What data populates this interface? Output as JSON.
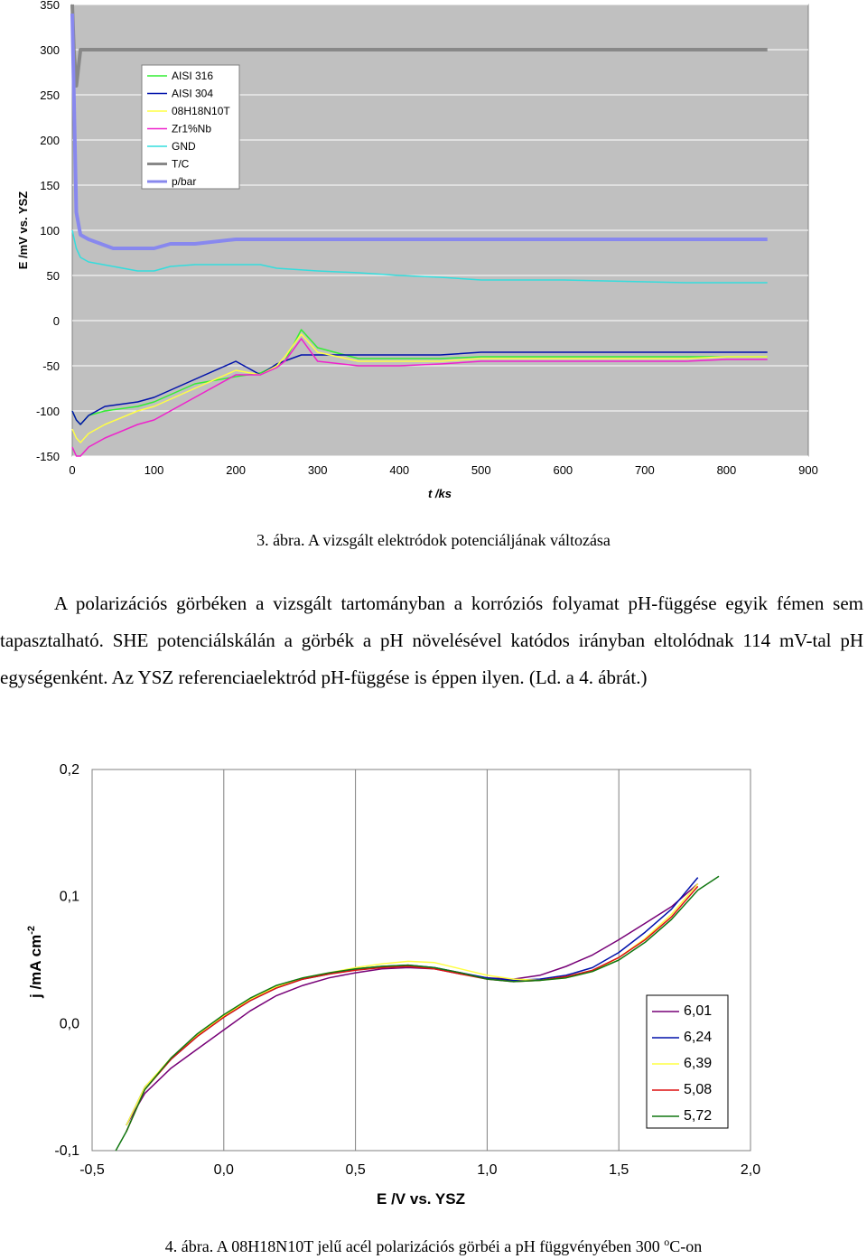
{
  "figure3": {
    "caption": "3. ábra. A vizsgált elektródok potenciáljának változása"
  },
  "paragraph": {
    "text": "A polarizációs görbéken a vizsgált tartományban a korróziós folyamat pH-függése egyik fémen sem tapasztalható. SHE potenciálskálán a görbék a pH növelésével katódos irányban eltolódnak 114 mV-tal pH egységenként. Az YSZ referenciaelektród pH-függése is éppen ilyen. (Ld. a 4. ábrát.)"
  },
  "figure4": {
    "caption_prefix": "4. ábra. A 08H18N10T jelű acél polarizációs görbéi a pH függvényében 300 ",
    "caption_sup": "o",
    "caption_suffix": "C-on"
  },
  "chart_data": [
    {
      "type": "line",
      "title": "",
      "xlabel": "t /ks",
      "ylabel": "E /mV vs. YSZ",
      "xlim": [
        0,
        900
      ],
      "ylim": [
        -150,
        350
      ],
      "xticks": [
        "0",
        "100",
        "200",
        "300",
        "400",
        "500",
        "600",
        "700",
        "800",
        "900"
      ],
      "yticks": [
        "-150",
        "-100",
        "-50",
        "0",
        "50",
        "100",
        "150",
        "200",
        "250",
        "300",
        "350"
      ],
      "grid": "horizontal",
      "plot_background": "#c0c0c0",
      "legend_position": "top-left",
      "series": [
        {
          "name": "AISI 316",
          "color": "#33ee33",
          "width": 1.5,
          "x": [
            0,
            5,
            10,
            20,
            40,
            80,
            100,
            150,
            200,
            230,
            260,
            280,
            300,
            350,
            400,
            450,
            500,
            520,
            540,
            560,
            600,
            620,
            650,
            700,
            750,
            800,
            850
          ],
          "y": [
            -100,
            -110,
            -115,
            -105,
            -100,
            -95,
            -90,
            -70,
            -62,
            -58,
            -45,
            -10,
            -30,
            -42,
            -42,
            -42,
            -40,
            -40,
            -40,
            -40,
            -40,
            -40,
            -40,
            -40,
            -40,
            -40,
            -40
          ]
        },
        {
          "name": "AISI 304",
          "color": "#0011aa",
          "width": 1.5,
          "x": [
            0,
            5,
            10,
            20,
            40,
            80,
            100,
            150,
            200,
            230,
            250,
            280,
            300,
            350,
            400,
            450,
            500,
            520,
            540,
            560,
            600,
            620,
            650,
            700,
            750,
            800,
            850
          ],
          "y": [
            -100,
            -110,
            -115,
            -105,
            -95,
            -90,
            -85,
            -65,
            -45,
            -60,
            -48,
            -38,
            -38,
            -38,
            -38,
            -38,
            -35,
            -35,
            -35,
            -35,
            -35,
            -35,
            -35,
            -35,
            -35,
            -35,
            -35
          ]
        },
        {
          "name": "08H18N10T",
          "color": "#ffff44",
          "width": 1.5,
          "x": [
            0,
            5,
            10,
            20,
            40,
            80,
            100,
            150,
            200,
            230,
            250,
            260,
            280,
            300,
            350,
            400,
            450,
            500,
            520,
            540,
            560,
            600,
            620,
            650,
            700,
            750,
            800,
            850
          ],
          "y": [
            -120,
            -130,
            -135,
            -125,
            -115,
            -100,
            -95,
            -75,
            -55,
            -60,
            -50,
            -40,
            -15,
            -35,
            -45,
            -45,
            -45,
            -42,
            -42,
            -42,
            -42,
            -42,
            -42,
            -42,
            -42,
            -42,
            -40,
            -40
          ]
        },
        {
          "name": "Zr1%Nb",
          "color": "#ee22cc",
          "width": 1.5,
          "x": [
            0,
            5,
            10,
            20,
            40,
            80,
            100,
            150,
            200,
            230,
            250,
            260,
            280,
            300,
            350,
            400,
            450,
            500,
            520,
            540,
            560,
            600,
            620,
            650,
            700,
            750,
            800,
            850
          ],
          "y": [
            -140,
            -150,
            -155,
            -140,
            -130,
            -115,
            -110,
            -85,
            -60,
            -60,
            -52,
            -45,
            -20,
            -45,
            -50,
            -50,
            -48,
            -45,
            -45,
            -45,
            -45,
            -45,
            -45,
            -45,
            -45,
            -45,
            -43,
            -43
          ]
        },
        {
          "name": "GND",
          "color": "#33dddd",
          "width": 1.5,
          "x": [
            0,
            5,
            10,
            20,
            50,
            80,
            100,
            120,
            150,
            200,
            230,
            250,
            300,
            350,
            400,
            450,
            500,
            550,
            600,
            650,
            700,
            750,
            800,
            850
          ],
          "y": [
            100,
            80,
            70,
            65,
            60,
            55,
            55,
            60,
            62,
            62,
            62,
            58,
            55,
            53,
            50,
            48,
            45,
            45,
            45,
            44,
            43,
            42,
            42,
            42
          ]
        },
        {
          "name": "T/C",
          "color": "#888888",
          "width": 4,
          "x": [
            0,
            2,
            5,
            10,
            20,
            50,
            100,
            200,
            300,
            400,
            500,
            600,
            700,
            800,
            850
          ],
          "y": [
            350,
            300,
            260,
            300,
            300,
            300,
            300,
            300,
            300,
            300,
            300,
            300,
            300,
            300,
            300
          ]
        },
        {
          "name": "p/bar",
          "color": "#8888ee",
          "width": 4,
          "x": [
            0,
            2,
            5,
            10,
            20,
            50,
            80,
            100,
            120,
            150,
            200,
            300,
            400,
            500,
            600,
            700,
            800,
            850
          ],
          "y": [
            340,
            250,
            120,
            95,
            90,
            80,
            80,
            80,
            85,
            85,
            90,
            90,
            90,
            90,
            90,
            90,
            90,
            90
          ]
        }
      ]
    },
    {
      "type": "line",
      "title": "",
      "xlabel": "E /V vs. YSZ",
      "ylabel": "j /mA cm-2",
      "ylabel_main": "j /mA cm",
      "ylabel_sup": "-2",
      "xlim": [
        -0.5,
        2.0
      ],
      "ylim": [
        -0.1,
        0.2
      ],
      "xticks": [
        "-0,5",
        "0,0",
        "0,5",
        "1,0",
        "1,5",
        "2,0"
      ],
      "yticks": [
        "-0,1",
        "0,0",
        "0,1",
        "0,2"
      ],
      "grid": "vertical",
      "plot_background": "#ffffff",
      "legend_position": "bottom-right",
      "series": [
        {
          "name": "6,01",
          "color": "#770077",
          "width": 1.5,
          "x": [
            -0.37,
            -0.3,
            -0.2,
            -0.1,
            0.0,
            0.1,
            0.2,
            0.3,
            0.4,
            0.5,
            0.6,
            0.7,
            0.8,
            0.9,
            1.0,
            1.1,
            1.2,
            1.3,
            1.4,
            1.5,
            1.6,
            1.7,
            1.8
          ],
          "y": [
            -0.08,
            -0.055,
            -0.035,
            -0.02,
            -0.005,
            0.01,
            0.022,
            0.03,
            0.036,
            0.04,
            0.043,
            0.044,
            0.043,
            0.039,
            0.036,
            0.035,
            0.038,
            0.045,
            0.054,
            0.066,
            0.079,
            0.092,
            0.11
          ]
        },
        {
          "name": "6,24",
          "color": "#0011aa",
          "width": 1.5,
          "x": [
            -0.37,
            -0.3,
            -0.2,
            -0.1,
            0.0,
            0.1,
            0.2,
            0.3,
            0.4,
            0.5,
            0.6,
            0.7,
            0.8,
            0.9,
            1.0,
            1.1,
            1.2,
            1.3,
            1.4,
            1.5,
            1.6,
            1.7,
            1.8
          ],
          "y": [
            -0.08,
            -0.05,
            -0.028,
            -0.01,
            0.005,
            0.018,
            0.028,
            0.035,
            0.039,
            0.043,
            0.045,
            0.046,
            0.044,
            0.04,
            0.036,
            0.034,
            0.035,
            0.038,
            0.044,
            0.056,
            0.072,
            0.09,
            0.115
          ]
        },
        {
          "name": "6,39",
          "color": "#ffff44",
          "width": 1.5,
          "x": [
            -0.37,
            -0.3,
            -0.2,
            -0.1,
            0.0,
            0.1,
            0.2,
            0.3,
            0.4,
            0.5,
            0.6,
            0.7,
            0.8,
            0.9,
            1.0,
            1.1,
            1.2,
            1.3,
            1.4,
            1.5,
            1.6,
            1.7,
            1.8
          ],
          "y": [
            -0.08,
            -0.05,
            -0.027,
            -0.009,
            0.006,
            0.019,
            0.029,
            0.036,
            0.04,
            0.044,
            0.047,
            0.049,
            0.048,
            0.043,
            0.038,
            0.035,
            0.034,
            0.036,
            0.041,
            0.052,
            0.067,
            0.086,
            0.11
          ]
        },
        {
          "name": "5,08",
          "color": "#dd1111",
          "width": 1.5,
          "x": [
            -0.37,
            -0.3,
            -0.2,
            -0.1,
            0.0,
            0.1,
            0.2,
            0.3,
            0.4,
            0.5,
            0.6,
            0.7,
            0.8,
            0.9,
            1.0,
            1.1,
            1.2,
            1.3,
            1.4,
            1.5,
            1.6,
            1.7,
            1.8
          ],
          "y": [
            -0.085,
            -0.052,
            -0.028,
            -0.01,
            0.005,
            0.018,
            0.028,
            0.035,
            0.039,
            0.042,
            0.044,
            0.045,
            0.043,
            0.039,
            0.035,
            0.033,
            0.034,
            0.037,
            0.042,
            0.052,
            0.066,
            0.084,
            0.108
          ]
        },
        {
          "name": "5,72",
          "color": "#117711",
          "width": 1.5,
          "x": [
            -0.41,
            -0.37,
            -0.3,
            -0.2,
            -0.1,
            0.0,
            0.1,
            0.2,
            0.3,
            0.4,
            0.5,
            0.6,
            0.7,
            0.8,
            0.9,
            1.0,
            1.1,
            1.2,
            1.3,
            1.4,
            1.5,
            1.6,
            1.7,
            1.8,
            1.88
          ],
          "y": [
            -0.1,
            -0.085,
            -0.052,
            -0.027,
            -0.008,
            0.007,
            0.02,
            0.03,
            0.036,
            0.04,
            0.043,
            0.045,
            0.046,
            0.044,
            0.04,
            0.035,
            0.033,
            0.034,
            0.036,
            0.041,
            0.05,
            0.064,
            0.082,
            0.105,
            0.116
          ]
        }
      ]
    }
  ]
}
